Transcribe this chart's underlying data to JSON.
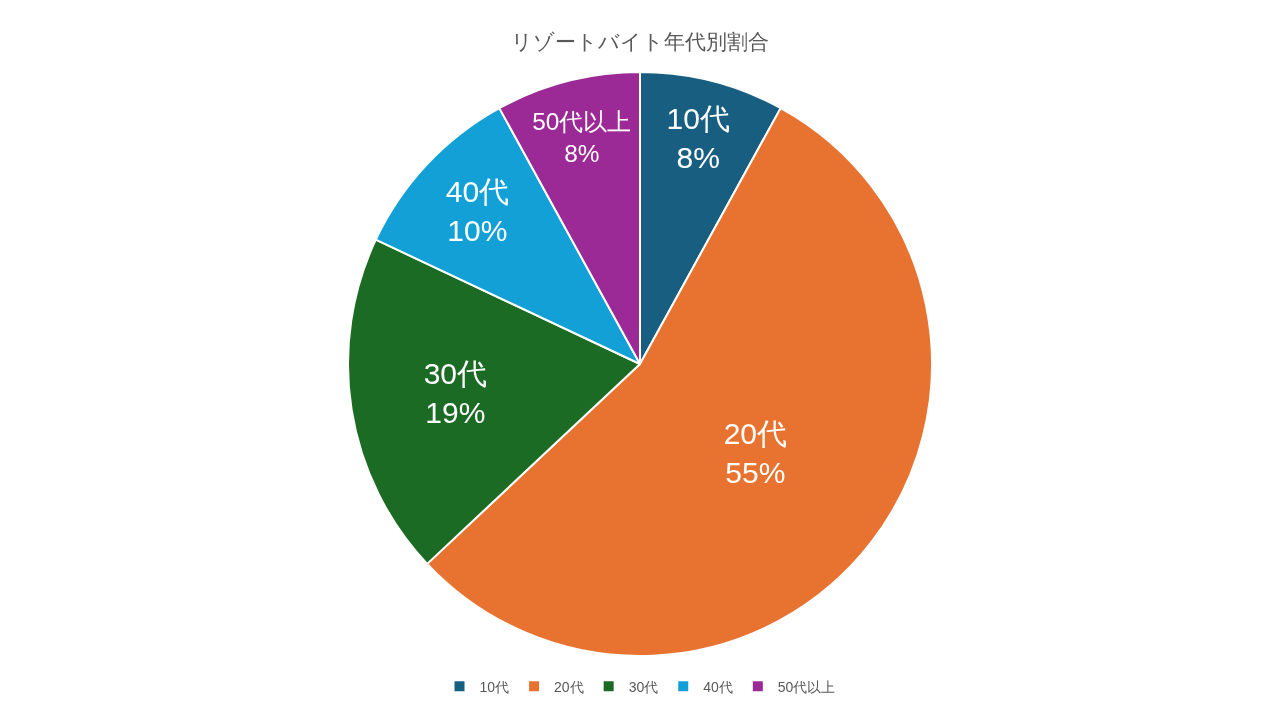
{
  "chart_data": {
    "type": "pie",
    "title": "リゾートバイト年代別割合",
    "categories": [
      "10代",
      "20代",
      "30代",
      "40代",
      "50代以上"
    ],
    "values": [
      8,
      55,
      19,
      10,
      8
    ],
    "value_labels": [
      "8%",
      "55%",
      "19%",
      "10%",
      "8%"
    ],
    "colors": [
      "#175e80",
      "#e8722f",
      "#1c6b24",
      "#12a0d7",
      "#9c2a96"
    ],
    "legend": "bottom"
  }
}
